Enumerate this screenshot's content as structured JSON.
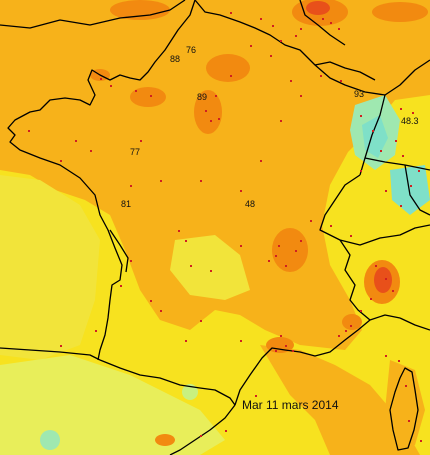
{
  "map": {
    "date_label": "Mar 11 mars 2014",
    "station_values": [
      "76",
      "88",
      "89",
      "93",
      "48.3",
      "77",
      "81",
      "48"
    ],
    "colors": {
      "background_yellow": "#f7e21f",
      "orange": "#f7b21a",
      "dark_orange": "#f28a10",
      "red": "#e8501a",
      "pale_yellow_green": "#e8ee5a",
      "cyan": "#7fe0c8",
      "coastline": "#000000",
      "station_dot": "#d02020"
    }
  }
}
